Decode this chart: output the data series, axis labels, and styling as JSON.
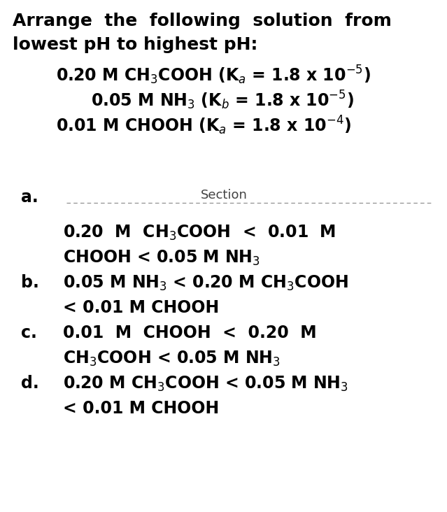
{
  "bg_color": "#ffffff",
  "text_color": "#000000",
  "dashed_color": "#999999",
  "figsize": [
    6.39,
    7.32
  ],
  "dpi": 100,
  "header_line1": "Arrange  the  following  solution  from",
  "header_line2": "lowest pH to highest pH:",
  "item1": "0.20 M CH$_3$COOH (K$_a$ = 1.8 x 10$^{-5}$)",
  "item2": "0.05 M NH$_3$ (K$_b$ = 1.8 x 10$^{-5}$)",
  "item3": "0.01 M CHOOH (K$_a$ = 1.8 x 10$^{-4}$)",
  "section_label": "a.",
  "section_text": "Section",
  "opt_a_line1": "0.20  M  CH$_3$COOH  <  0.01  M",
  "opt_a_line2": "CHOOH < 0.05 M NH$_3$",
  "opt_b_label": "b.",
  "opt_b_line1": "0.05 M NH$_3$ < 0.20 M CH$_3$COOH",
  "opt_b_line2": "< 0.01 M CHOOH",
  "opt_c_label": "c.",
  "opt_c_line1": "0.01  M  CHOOH  <  0.20  M",
  "opt_c_line2": "CH$_3$COOH < 0.05 M NH$_3$",
  "opt_d_label": "d.",
  "opt_d_line1": "0.20 M CH$_3$COOH < 0.05 M NH$_3$",
  "opt_d_line2": "< 0.01 M CHOOH",
  "font_size_header": 18,
  "font_size_items": 17,
  "font_size_section": 13,
  "font_size_options": 17,
  "font_weight": "bold",
  "section_label_fontsize": 17
}
